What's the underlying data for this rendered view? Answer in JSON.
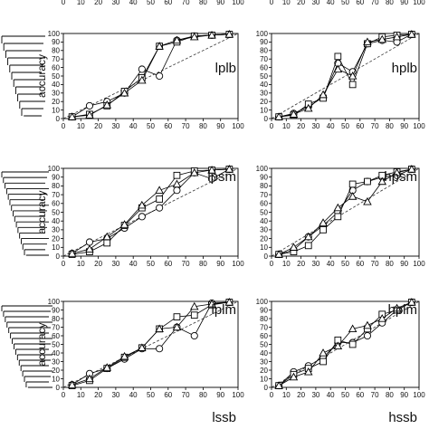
{
  "chart_data": {
    "type": "line",
    "ylabel": "accuracy",
    "xlim": [
      0,
      100
    ],
    "ylim": [
      0,
      100
    ],
    "x_ticks": [
      "0",
      "10",
      "20",
      "30",
      "40",
      "50",
      "60",
      "70",
      "80",
      "90",
      "100"
    ],
    "y_ticks": [
      "0",
      "10",
      "20",
      "30",
      "40",
      "50",
      "60",
      "70",
      "80",
      "90",
      "100"
    ],
    "x": [
      5,
      15,
      25,
      35,
      45,
      55,
      65,
      75,
      85,
      95
    ],
    "reference": {
      "style": "dashed",
      "x": [
        0,
        100
      ],
      "y": [
        0,
        100
      ]
    },
    "marker_styles": [
      "circle",
      "square",
      "triangle"
    ],
    "panels": [
      {
        "title": "lplb",
        "series": [
          {
            "marker": "circle",
            "values": [
              2,
              15,
              20,
              30,
              58,
              50,
              92,
              97,
              98,
              99
            ]
          },
          {
            "marker": "square",
            "values": [
              2,
              5,
              15,
              32,
              48,
              85,
              90,
              97,
              98,
              99
            ]
          },
          {
            "marker": "triangle",
            "values": [
              2,
              4,
              16,
              30,
              45,
              85,
              92,
              96,
              98,
              99
            ]
          }
        ]
      },
      {
        "title": "hplb",
        "series": [
          {
            "marker": "circle",
            "values": [
              2,
              6,
              14,
              25,
              65,
              55,
              88,
              92,
              90,
              99
            ]
          },
          {
            "marker": "square",
            "values": [
              2,
              4,
              17,
              24,
              73,
              40,
              88,
              96,
              98,
              99
            ]
          },
          {
            "marker": "triangle",
            "values": [
              2,
              5,
              12,
              28,
              58,
              50,
              90,
              93,
              96,
              99
            ]
          }
        ]
      },
      {
        "title": "lpsm",
        "series": [
          {
            "marker": "circle",
            "values": [
              3,
              16,
              20,
              32,
              45,
              55,
              75,
              95,
              88,
              99
            ]
          },
          {
            "marker": "square",
            "values": [
              2,
              5,
              15,
              35,
              55,
              65,
              92,
              97,
              98,
              99
            ]
          },
          {
            "marker": "triangle",
            "values": [
              3,
              8,
              22,
              36,
              58,
              75,
              82,
              95,
              98,
              99
            ]
          }
        ]
      },
      {
        "title": "hpsm",
        "series": [
          {
            "marker": "circle",
            "values": [
              2,
              7,
              22,
              35,
              50,
              75,
              85,
              90,
              92,
              99
            ]
          },
          {
            "marker": "square",
            "values": [
              2,
              5,
              12,
              30,
              45,
              82,
              85,
              92,
              96,
              99
            ]
          },
          {
            "marker": "triangle",
            "values": [
              2,
              10,
              22,
              38,
              55,
              68,
              62,
              85,
              95,
              99
            ]
          }
        ]
      },
      {
        "title": "lplm",
        "series": [
          {
            "marker": "circle",
            "values": [
              3,
              16,
              22,
              33,
              45,
              45,
              70,
              60,
              98,
              99
            ]
          },
          {
            "marker": "square",
            "values": [
              2,
              8,
              22,
              35,
              46,
              68,
              82,
              84,
              96,
              99
            ]
          },
          {
            "marker": "triangle",
            "values": [
              3,
              10,
              23,
              36,
              46,
              68,
              70,
              94,
              97,
              99
            ]
          }
        ]
      },
      {
        "title": "hplm",
        "series": [
          {
            "marker": "circle",
            "values": [
              2,
              18,
              25,
              35,
              52,
              52,
              60,
              75,
              90,
              99
            ]
          },
          {
            "marker": "square",
            "values": [
              2,
              15,
              22,
              30,
              55,
              50,
              68,
              85,
              90,
              99
            ]
          },
          {
            "marker": "triangle",
            "values": [
              2,
              12,
              18,
              40,
              48,
              68,
              72,
              80,
              92,
              99
            ]
          }
        ]
      }
    ],
    "bottom_labels": [
      "lssb",
      "hssb"
    ]
  }
}
